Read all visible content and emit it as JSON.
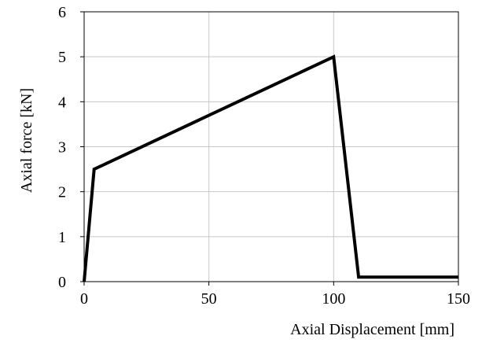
{
  "chart_data": {
    "type": "line",
    "title": "",
    "xlabel": "Axial Displacement [mm]",
    "ylabel": "Axial force [kN]",
    "xlim": [
      0,
      150
    ],
    "ylim": [
      0,
      6
    ],
    "xticks": [
      0,
      50,
      100,
      150
    ],
    "yticks": [
      0,
      1,
      2,
      3,
      4,
      5,
      6
    ],
    "grid": true,
    "series": [
      {
        "x": [
          0,
          4,
          100,
          110,
          150
        ],
        "y": [
          0,
          2.5,
          5.0,
          0.1,
          0.1
        ],
        "color": "#000000"
      }
    ]
  }
}
